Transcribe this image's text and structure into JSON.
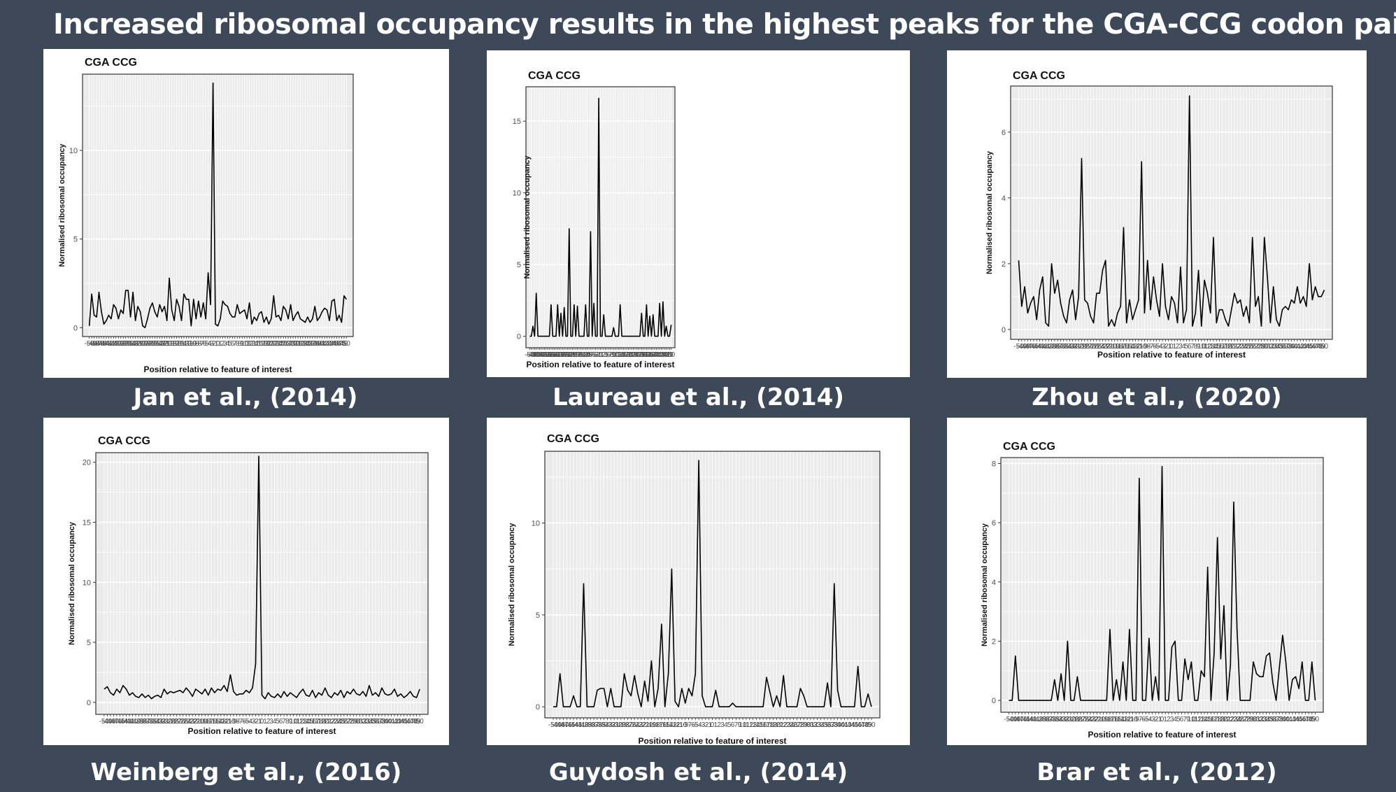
{
  "slide": {
    "title": "Increased ribosomal occupancy results in the highest peaks for the CGA-CCG codon pair"
  },
  "style": {
    "background": "#3d4858",
    "line_color": "#000000",
    "panel_bg": "#ebebeb"
  },
  "chart_data": [
    {
      "type": "line",
      "caption": "Jan et al., (2014)",
      "title": "CGA CCG",
      "xlabel": "Position relative to feature of interest",
      "ylabel": "Normalised ribosomal occupancy",
      "x_range": [
        -50,
        50
      ],
      "ylim": [
        -0.5,
        14.3
      ],
      "yticks": [
        0,
        5,
        10
      ],
      "grid": true,
      "y": [
        0.1,
        1.9,
        0.7,
        0.6,
        2.0,
        0.9,
        0.2,
        0.4,
        0.7,
        0.5,
        1.3,
        1.1,
        0.5,
        1.0,
        0.8,
        2.1,
        2.1,
        0.6,
        2.0,
        0.4,
        1.2,
        0.9,
        0.1,
        0.0,
        0.5,
        1.1,
        1.4,
        0.9,
        0.6,
        1.3,
        0.9,
        1.2,
        0.4,
        2.8,
        1.0,
        0.4,
        1.6,
        1.2,
        0.4,
        1.9,
        1.6,
        1.6,
        0.1,
        1.6,
        0.5,
        1.5,
        0.6,
        1.4,
        0.5,
        3.1,
        1.3,
        13.8,
        0.2,
        0.1,
        0.5,
        1.5,
        1.3,
        1.2,
        0.8,
        0.6,
        0.6,
        1.3,
        0.8,
        0.9,
        1.0,
        0.5,
        1.4,
        0.2,
        0.6,
        0.4,
        0.8,
        0.9,
        0.3,
        0.6,
        0.2,
        0.5,
        1.8,
        0.6,
        0.7,
        0.4,
        1.2,
        1.0,
        0.5,
        1.3,
        0.4,
        0.7,
        0.9,
        0.5,
        0.4,
        0.3,
        0.6,
        0.3,
        0.5,
        1.2,
        0.4,
        0.6,
        0.9,
        1.1,
        1.0,
        0.4,
        1.5,
        1.6,
        0.4,
        0.7,
        0.3,
        1.8,
        1.6
      ]
    },
    {
      "type": "line",
      "caption": "Laureau et al., (2014)",
      "title": "CGA CCG",
      "xlabel": "Position relative to feature of interest",
      "ylabel": "Normalised ribosomal occupancy",
      "x_range": [
        -50,
        50
      ],
      "ylim": [
        -0.8,
        17.4
      ],
      "yticks": [
        0,
        5,
        10,
        15
      ],
      "grid": true,
      "y": [
        0,
        0,
        0.7,
        0,
        3.0,
        0,
        0,
        0,
        0,
        0,
        0,
        0,
        0,
        2.2,
        0,
        0,
        0,
        2.2,
        0,
        1.6,
        0,
        2.0,
        0,
        0,
        7.5,
        0,
        0,
        2.2,
        0,
        2.1,
        0,
        0,
        0,
        0,
        2.2,
        0,
        0,
        7.3,
        0,
        2.3,
        0,
        0,
        16.6,
        0,
        0,
        1.5,
        0,
        0,
        0,
        0,
        0,
        0.6,
        0,
        0,
        0,
        2.2,
        0,
        0,
        0,
        0,
        0,
        0,
        0,
        0,
        0,
        0,
        0,
        0,
        1.6,
        0,
        0,
        2.2,
        0,
        1.4,
        0,
        1.5,
        0,
        0,
        0,
        2.3,
        0,
        2.4,
        0,
        0.7,
        0,
        0,
        0.8
      ]
    },
    {
      "type": "line",
      "caption": "Zhou et al., (2020)",
      "title": "CGA CCG",
      "xlabel": "Position relative to feature of interest",
      "ylabel": "Normalised ribosomal occupancy",
      "x_range": [
        -50,
        50
      ],
      "ylim": [
        -0.3,
        7.4
      ],
      "yticks": [
        0,
        2,
        4,
        6
      ],
      "grid": true,
      "y": [
        2.1,
        0.7,
        1.3,
        0.5,
        0.8,
        1.0,
        0.3,
        1.2,
        1.6,
        0.2,
        0.1,
        2.0,
        1.1,
        1.5,
        0.8,
        0.4,
        0.2,
        0.9,
        1.2,
        0.3,
        1.0,
        5.2,
        0.9,
        0.8,
        0.4,
        0.2,
        1.1,
        1.1,
        1.8,
        2.1,
        0.1,
        0.3,
        0.1,
        0.5,
        0.7,
        3.1,
        0.2,
        0.9,
        0.3,
        0.6,
        0.9,
        5.1,
        0.5,
        2.1,
        0.6,
        1.6,
        0.9,
        0.4,
        2.0,
        0.7,
        0.3,
        1.0,
        0.8,
        0.2,
        1.9,
        0.2,
        0.6,
        7.1,
        0.1,
        0.5,
        1.8,
        0.1,
        1.5,
        1.1,
        0.5,
        2.8,
        0.2,
        0.6,
        0.6,
        0.3,
        0.1,
        0.6,
        1.1,
        0.8,
        0.9,
        0.4,
        0.7,
        0.2,
        2.8,
        0.7,
        1.0,
        0.1,
        2.8,
        1.6,
        0.2,
        1.3,
        0.3,
        0.1,
        0.6,
        0.7,
        0.6,
        0.9,
        0.8,
        1.3,
        0.8,
        1.0,
        0.7,
        2.0,
        0.9,
        1.3,
        1.0,
        1.0,
        1.2
      ]
    },
    {
      "type": "line",
      "caption": "Weinberg et al., (2016)",
      "title": "CGA CCG",
      "xlabel": "Position relative to feature of interest",
      "ylabel": "Normalised ribosomal occupancy",
      "x_range": [
        -50,
        50
      ],
      "ylim": [
        -1.0,
        20.8
      ],
      "yticks": [
        0,
        5,
        10,
        15,
        20
      ],
      "grid": true,
      "y": [
        1.1,
        1.3,
        0.8,
        0.6,
        1.1,
        0.8,
        1.4,
        1.1,
        0.6,
        0.8,
        0.5,
        0.4,
        0.7,
        0.4,
        0.6,
        0.3,
        0.5,
        0.6,
        0.4,
        1.1,
        0.7,
        0.9,
        0.8,
        0.9,
        1.0,
        0.8,
        1.2,
        0.9,
        0.5,
        1.1,
        0.9,
        0.7,
        1.1,
        0.6,
        1.2,
        0.8,
        1.1,
        1.0,
        1.4,
        0.9,
        2.3,
        0.9,
        0.6,
        0.7,
        0.7,
        1.0,
        0.8,
        1.2,
        3.2,
        20.5,
        0.6,
        0.3,
        0.8,
        0.5,
        0.4,
        0.7,
        0.4,
        0.9,
        0.5,
        0.8,
        0.6,
        0.4,
        0.8,
        1.1,
        0.6,
        0.5,
        1.0,
        0.4,
        0.8,
        0.6,
        1.2,
        0.6,
        0.4,
        0.8,
        0.6,
        1.0,
        0.4,
        0.9,
        0.7,
        1.1,
        0.7,
        0.6,
        0.9,
        0.5,
        1.4,
        0.6,
        0.8,
        0.5,
        1.2,
        0.7,
        0.6,
        0.7,
        1.1,
        0.5,
        0.7,
        0.4,
        0.6,
        0.9,
        0.5,
        0.4,
        1.1
      ]
    },
    {
      "type": "line",
      "caption": "Guydosh et al., (2014)",
      "title": "CGA CCG",
      "xlabel": "Position relative to feature of interest",
      "ylabel": "Normalised ribosomal occupancy",
      "x_range": [
        -50,
        50
      ],
      "ylim": [
        -0.6,
        13.9
      ],
      "yticks": [
        0,
        5,
        10
      ],
      "grid": true,
      "y": [
        0,
        0,
        1.8,
        0,
        0,
        0,
        0.6,
        0,
        0,
        6.7,
        0,
        0,
        0,
        0.9,
        1.0,
        1.0,
        0,
        1.0,
        0,
        0,
        0,
        1.8,
        0.9,
        0.6,
        1.7,
        0.7,
        0,
        1.4,
        0.3,
        2.5,
        0,
        1.0,
        4.5,
        0,
        1.8,
        7.5,
        0.3,
        0,
        1.0,
        0.2,
        1.0,
        0.6,
        1.8,
        13.4,
        0.6,
        0,
        0,
        0,
        0.9,
        0,
        0,
        0,
        0,
        0.2,
        0,
        0,
        0,
        0,
        0,
        0,
        0,
        0,
        0,
        1.6,
        0.8,
        0,
        0.6,
        0,
        1.7,
        0,
        0,
        0,
        0,
        1.0,
        0.6,
        0,
        0,
        0,
        0,
        0,
        0,
        1.3,
        0,
        6.7,
        0.9,
        0,
        0,
        0,
        0,
        0,
        2.2,
        0,
        0,
        0.7,
        0
      ]
    },
    {
      "type": "line",
      "caption": "Brar et al., (2012)",
      "title": "CGA CCG",
      "xlabel": "Position relative to feature of interest",
      "ylabel": "Normalised ribosomal occupancy",
      "x_range": [
        -50,
        50
      ],
      "ylim": [
        -0.4,
        8.2
      ],
      "yticks": [
        0,
        2,
        4,
        6,
        8
      ],
      "grid": true,
      "y": [
        0,
        0,
        1.5,
        0,
        0,
        0,
        0,
        0,
        0,
        0,
        0,
        0,
        0,
        0,
        0.7,
        0,
        0.9,
        0,
        2.0,
        0,
        0,
        0.8,
        0,
        0,
        0,
        0,
        0,
        0,
        0,
        0,
        0,
        2.4,
        0,
        0.7,
        0,
        1.3,
        0,
        2.4,
        0,
        0,
        7.5,
        0,
        0,
        2.1,
        0,
        0.8,
        0,
        7.9,
        0,
        0,
        1.8,
        2.0,
        0,
        0,
        1.4,
        0.7,
        1.3,
        0,
        0,
        1.0,
        0.8,
        4.5,
        0,
        1.6,
        5.5,
        1.4,
        3.2,
        0,
        1.2,
        6.7,
        2.4,
        0,
        0,
        0,
        0,
        1.3,
        0.9,
        0.8,
        0.8,
        1.5,
        1.6,
        0.6,
        0,
        1.1,
        2.2,
        1.3,
        0,
        0.7,
        0.8,
        0.4,
        1.3,
        0,
        0,
        1.3,
        0
      ]
    }
  ]
}
